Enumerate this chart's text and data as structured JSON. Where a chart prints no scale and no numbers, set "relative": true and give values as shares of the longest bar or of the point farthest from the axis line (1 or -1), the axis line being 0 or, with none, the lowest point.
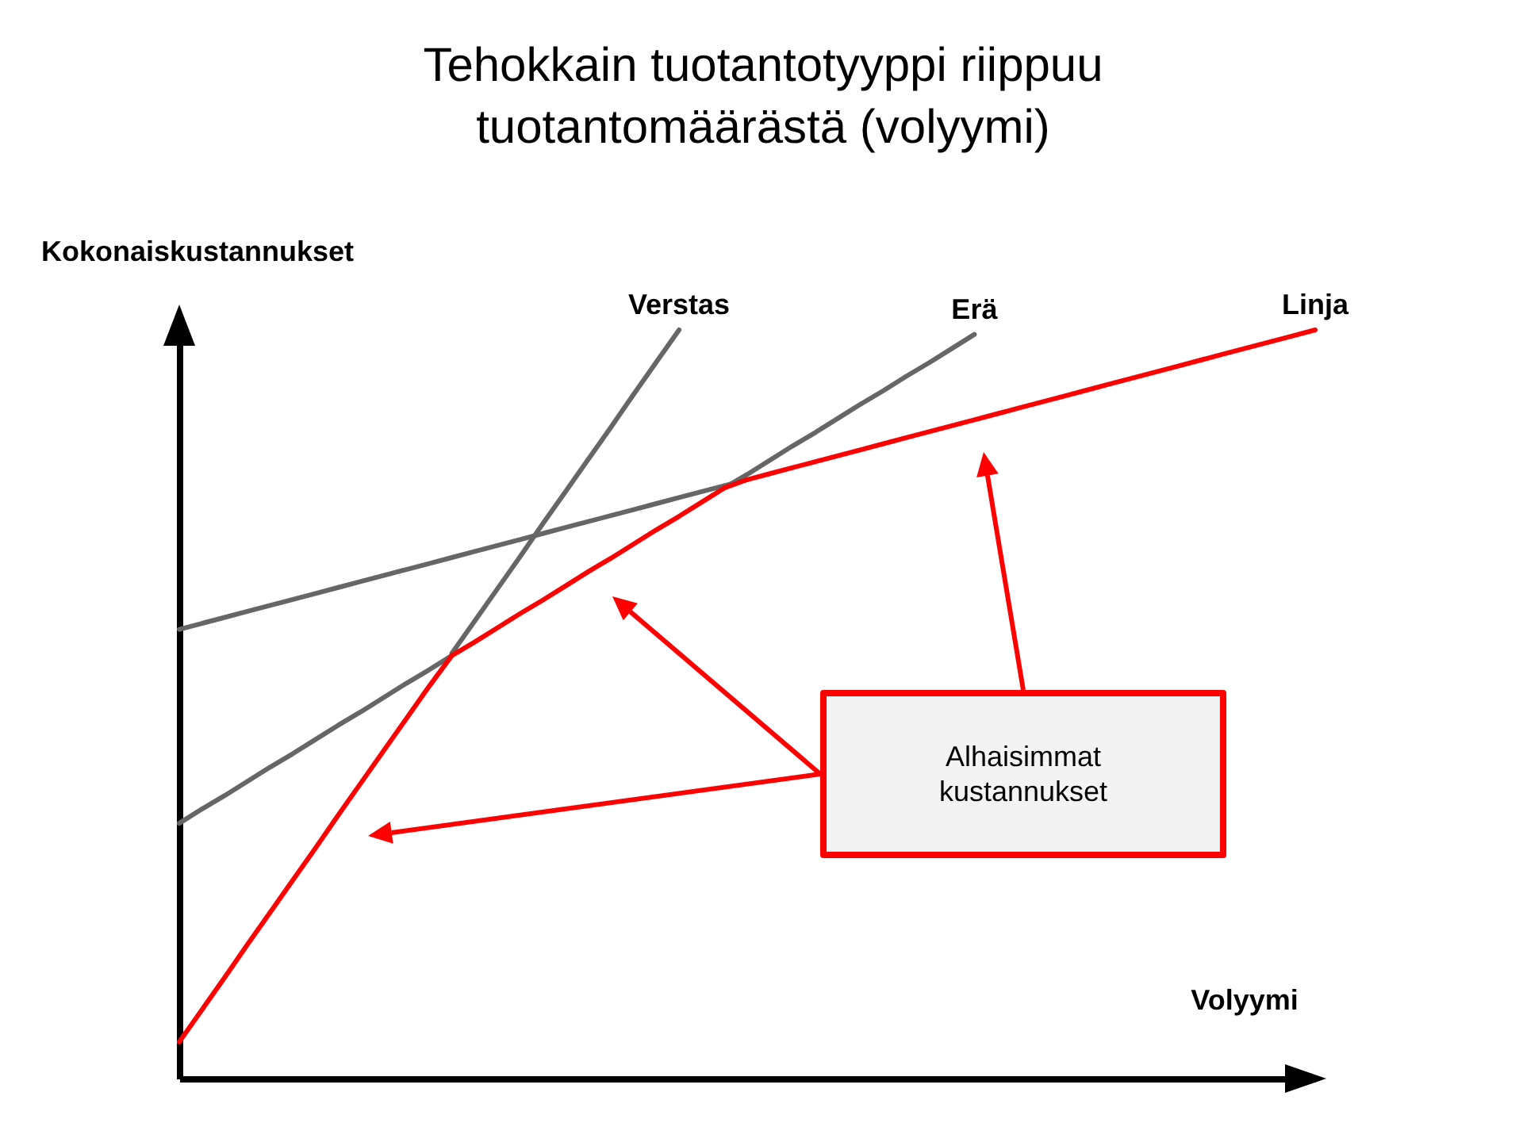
{
  "chart_data": {
    "type": "line",
    "title": "Tehokkain tuotantotyyppi riippuu tuotantomäärästä (volyymi)",
    "xlabel": "Volyymi",
    "ylabel": "Kokonaiskustannukset",
    "relative": true,
    "line_style": "solid",
    "categories": [
      null,
      null,
      null,
      null,
      null,
      null,
      null,
      null,
      null,
      null,
      null,
      null,
      null,
      null,
      null,
      null,
      null,
      null,
      null,
      null,
      null,
      null,
      null,
      null,
      null,
      null,
      null,
      null,
      null,
      null,
      null,
      null,
      null,
      null,
      null,
      null,
      null,
      null,
      null,
      null,
      null,
      null,
      null,
      null,
      null,
      null,
      null,
      null,
      null,
      null,
      null
    ],
    "series": [
      {
        "name": "Verstas",
        "color": "#666666",
        "values": [
          null,
          null,
          null,
          null,
          null,
          null,
          null,
          null,
          null,
          null,
          null,
          null,
          0.568,
          0.611,
          0.654,
          0.697,
          0.741,
          0.784,
          0.827,
          0.87,
          0.914,
          0.957,
          1,
          null,
          null,
          null,
          null,
          null,
          null,
          null,
          null,
          null,
          null,
          null,
          null,
          null,
          null,
          null,
          null,
          null,
          null,
          null,
          null,
          null,
          null,
          null,
          null,
          null,
          null,
          null,
          null
        ]
      },
      {
        "name": "Erä",
        "color": "#666666",
        "values": [
          0.341,
          0.36,
          0.378,
          0.397,
          0.416,
          0.434,
          0.453,
          0.472,
          0.49,
          0.509,
          0.528,
          0.546,
          0.565,
          null,
          null,
          null,
          null,
          null,
          null,
          null,
          null,
          null,
          null,
          null,
          0.789,
          0.807,
          0.826,
          0.845,
          0.863,
          0.882,
          0.901,
          0.919,
          0.938,
          0.956,
          0.975,
          0.994,
          null,
          null,
          null,
          null,
          null,
          null,
          null,
          null,
          null,
          null,
          null,
          null,
          null,
          null,
          null
        ]
      },
      {
        "color": "#666666",
        "values": [
          0.6,
          0.608,
          0.616,
          0.624,
          0.632,
          0.64,
          0.648,
          0.656,
          0.664,
          0.672,
          0.68,
          0.688,
          0.696,
          0.704,
          0.712,
          0.72,
          0.728,
          0.736,
          0.744,
          0.752,
          0.76,
          0.768,
          0.776,
          0.784,
          0.792,
          0.8,
          null,
          null,
          null,
          null,
          null,
          null,
          null,
          null,
          null,
          null,
          null,
          null,
          null,
          null,
          null,
          null,
          null,
          null,
          null,
          null,
          null,
          null,
          null,
          null,
          null
        ]
      },
      {
        "color": "#ff0000",
        "values": [
          0.049,
          0.092,
          0.135,
          0.179,
          0.222,
          0.265,
          0.308,
          0.352,
          0.395,
          0.438,
          0.481,
          0.524,
          0.565,
          0.583,
          0.602,
          0.621,
          0.639,
          0.658,
          0.677,
          0.695,
          0.714,
          0.733,
          0.751,
          0.77,
          0.789,
          0.8,
          null,
          null,
          null,
          null,
          null,
          null,
          null,
          null,
          null,
          null,
          null,
          null,
          null,
          null,
          null,
          null,
          null,
          null,
          null,
          null,
          null,
          null,
          null,
          null,
          null
        ]
      },
      {
        "name": "Linja",
        "color": "#ff0000",
        "values": [
          null,
          null,
          null,
          null,
          null,
          null,
          null,
          null,
          null,
          null,
          null,
          null,
          null,
          null,
          null,
          null,
          null,
          null,
          null,
          null,
          null,
          null,
          null,
          null,
          null,
          0.8,
          0.808,
          0.816,
          0.824,
          0.832,
          0.84,
          0.848,
          0.856,
          0.864,
          0.872,
          0.88,
          0.888,
          0.896,
          0.904,
          0.912,
          0.92,
          0.928,
          0.936,
          0.944,
          0.952,
          0.96,
          0.968,
          0.976,
          0.984,
          0.992,
          1
        ]
      }
    ],
    "annotations": [
      "Alhaisimmat kustannukset"
    ]
  }
}
